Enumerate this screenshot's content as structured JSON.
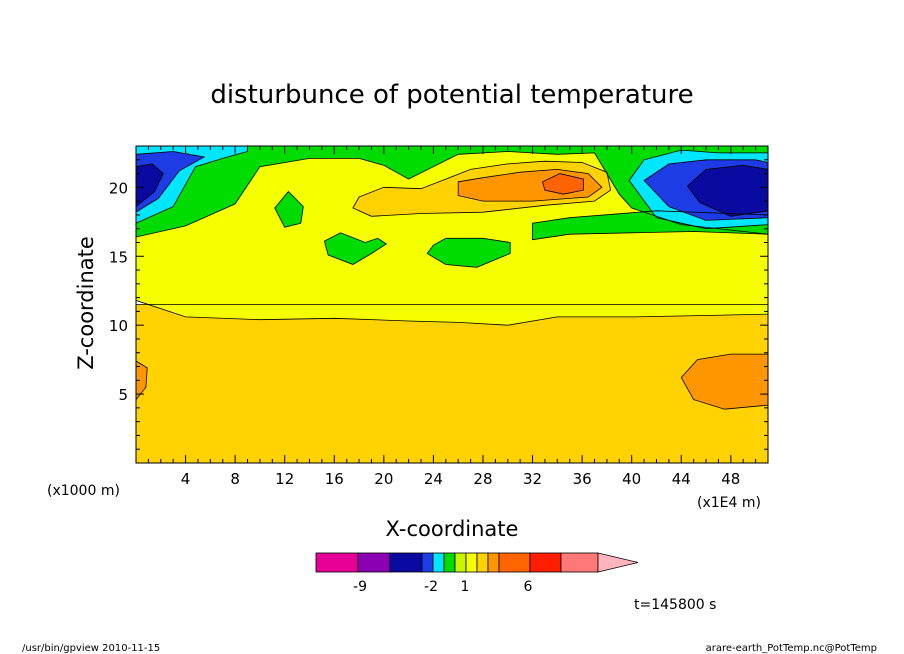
{
  "chart_data": {
    "type": "heatmap",
    "title": "disturbunce of potential temperature",
    "xlabel": "X-coordinate",
    "ylabel": "Z-coordinate",
    "x_unit_left": "(x1000 m)",
    "x_unit_right": "(x1E4 m)",
    "x_ticks": [
      "4",
      "8",
      "12",
      "16",
      "20",
      "24",
      "28",
      "32",
      "36",
      "40",
      "44",
      "48"
    ],
    "y_ticks": [
      "5",
      "10",
      "15",
      "20"
    ],
    "xlim": [
      0,
      51
    ],
    "ylim": [
      0,
      23
    ],
    "time_label": "t=145800 s",
    "colorbar": {
      "colors": [
        "#e60096",
        "#8c00b4",
        "#0a0aa0",
        "#1e3ce6",
        "#00e6ff",
        "#00dc00",
        "#c8f500",
        "#f5ff00",
        "#ffd200",
        "#ff9600",
        "#ff6400",
        "#ff1e00",
        "#ff7878",
        "#ffb4be"
      ],
      "labels": [
        "-9",
        "-2",
        "1",
        "6"
      ]
    },
    "regions": [
      {
        "level": "#ffd200",
        "points": [
          [
            0,
            0
          ],
          [
            51,
            0
          ],
          [
            51,
            11.5
          ],
          [
            0,
            11.5
          ]
        ]
      },
      {
        "level": "#f5ff00",
        "points": [
          [
            0,
            11.8
          ],
          [
            4,
            10.6
          ],
          [
            10,
            10.4
          ],
          [
            16,
            10.5
          ],
          [
            22,
            10.3
          ],
          [
            26,
            10.2
          ],
          [
            30,
            10.0
          ],
          [
            34,
            10.6
          ],
          [
            40,
            10.6
          ],
          [
            46,
            10.7
          ],
          [
            51,
            10.8
          ],
          [
            51,
            23
          ],
          [
            0,
            23
          ]
        ]
      },
      {
        "level": "#00dc00",
        "points": [
          [
            0,
            16.4
          ],
          [
            4,
            17.2
          ],
          [
            8,
            18.8
          ],
          [
            10,
            21.5
          ],
          [
            14,
            22.1
          ],
          [
            18,
            22.1
          ],
          [
            20,
            21.6
          ],
          [
            22,
            20.6
          ],
          [
            24,
            21.5
          ],
          [
            26,
            22.4
          ],
          [
            30,
            22.6
          ],
          [
            34,
            22.4
          ],
          [
            37,
            22.5
          ],
          [
            39,
            19.5
          ],
          [
            40,
            18.5
          ],
          [
            44,
            17.3
          ],
          [
            51,
            16.6
          ],
          [
            51,
            23
          ],
          [
            0,
            23
          ]
        ]
      },
      {
        "level": "#00dc00",
        "points": [
          [
            32,
            16.2
          ],
          [
            35,
            16.6
          ],
          [
            40,
            16.7
          ],
          [
            45,
            16.8
          ],
          [
            51,
            16.6
          ],
          [
            51,
            18
          ],
          [
            42,
            18.3
          ],
          [
            35,
            17.8
          ],
          [
            32,
            17.4
          ]
        ]
      },
      {
        "level": "#00dc00",
        "points": [
          [
            11.2,
            18.5
          ],
          [
            12.3,
            19.7
          ],
          [
            13.5,
            18.6
          ],
          [
            13.3,
            17.4
          ],
          [
            12.0,
            17.1
          ]
        ]
      },
      {
        "level": "#00dc00",
        "points": [
          [
            15.2,
            16.1
          ],
          [
            16.5,
            16.7
          ],
          [
            18.5,
            16.0
          ],
          [
            19.5,
            16.3
          ],
          [
            20.2,
            15.9
          ],
          [
            19.0,
            15.2
          ],
          [
            17.5,
            14.4
          ],
          [
            15.5,
            15.1
          ]
        ]
      },
      {
        "level": "#00dc00",
        "points": [
          [
            24,
            15.8
          ],
          [
            25,
            16.3
          ],
          [
            28,
            16.3
          ],
          [
            30.2,
            16.0
          ],
          [
            30.2,
            15.2
          ],
          [
            27.5,
            14.2
          ],
          [
            25.0,
            14.4
          ],
          [
            23.5,
            15.2
          ]
        ]
      },
      {
        "level": "#00e6ff",
        "points": [
          [
            0,
            17.4
          ],
          [
            3,
            18.6
          ],
          [
            4.8,
            21.5
          ],
          [
            7,
            22.1
          ],
          [
            9,
            22.6
          ],
          [
            9,
            23
          ],
          [
            0,
            23
          ]
        ]
      },
      {
        "level": "#00e6ff",
        "points": [
          [
            39.8,
            20.5
          ],
          [
            41,
            22.0
          ],
          [
            44,
            22.7
          ],
          [
            47,
            22.5
          ],
          [
            51,
            22.5
          ],
          [
            51,
            17.3
          ],
          [
            46,
            17.0
          ],
          [
            42,
            17.8
          ]
        ]
      },
      {
        "level": "#1e3ce6",
        "points": [
          [
            0,
            18.2
          ],
          [
            1.8,
            19.2
          ],
          [
            3.5,
            21.2
          ],
          [
            5.5,
            22.2
          ],
          [
            3,
            22.6
          ],
          [
            0,
            22.4
          ]
        ]
      },
      {
        "level": "#1e3ce6",
        "points": [
          [
            41,
            20.5
          ],
          [
            43,
            21.7
          ],
          [
            46,
            22.0
          ],
          [
            50,
            22.0
          ],
          [
            51,
            21.8
          ],
          [
            51,
            17.8
          ],
          [
            46,
            17.6
          ],
          [
            43,
            18.6
          ]
        ]
      },
      {
        "level": "#0a0aa0",
        "points": [
          [
            0,
            18.6
          ],
          [
            1.5,
            19.7
          ],
          [
            2.2,
            21.0
          ],
          [
            1.3,
            21.7
          ],
          [
            0,
            21.5
          ]
        ]
      },
      {
        "level": "#0a0aa0",
        "points": [
          [
            44.5,
            20.1
          ],
          [
            46,
            21.3
          ],
          [
            49,
            21.6
          ],
          [
            51,
            21.3
          ],
          [
            51,
            18.3
          ],
          [
            48,
            17.9
          ],
          [
            45.5,
            18.9
          ]
        ]
      },
      {
        "level": "#ffd200",
        "points": [
          [
            18,
            19.3
          ],
          [
            20,
            20.0
          ],
          [
            23,
            19.9
          ],
          [
            25,
            20.6
          ],
          [
            27,
            21.3
          ],
          [
            30,
            21.7
          ],
          [
            33,
            21.9
          ],
          [
            36,
            21.8
          ],
          [
            38,
            21.1
          ],
          [
            38.3,
            19.8
          ],
          [
            37,
            19.0
          ],
          [
            33,
            18.7
          ],
          [
            28,
            18.2
          ],
          [
            23,
            18.1
          ],
          [
            19,
            17.9
          ],
          [
            17.5,
            18.5
          ]
        ]
      },
      {
        "level": "#ff9600",
        "points": [
          [
            26,
            20.4
          ],
          [
            28,
            20.7
          ],
          [
            31,
            21.1
          ],
          [
            34,
            21.3
          ],
          [
            36.5,
            21.0
          ],
          [
            37.6,
            20.0
          ],
          [
            36.5,
            19.3
          ],
          [
            32,
            19.0
          ],
          [
            28,
            19.0
          ],
          [
            26,
            19.4
          ]
        ]
      },
      {
        "level": "#ff6400",
        "points": [
          [
            32.8,
            20.4
          ],
          [
            34.2,
            21.0
          ],
          [
            36.1,
            20.6
          ],
          [
            36.1,
            19.8
          ],
          [
            34.5,
            19.5
          ],
          [
            33.0,
            19.8
          ]
        ]
      },
      {
        "level": "#ff9600",
        "points": [
          [
            0,
            4.6
          ],
          [
            0.8,
            5.5
          ],
          [
            0.9,
            6.9
          ],
          [
            0,
            7.4
          ]
        ]
      },
      {
        "level": "#ff9600",
        "points": [
          [
            44,
            6.2
          ],
          [
            45.3,
            7.5
          ],
          [
            48,
            7.9
          ],
          [
            51,
            7.9
          ],
          [
            51,
            4.2
          ],
          [
            47.5,
            3.9
          ],
          [
            45,
            4.6
          ]
        ]
      }
    ]
  },
  "footer": {
    "left": "/usr/bin/gpview  2010-11-15",
    "right": "arare-earth_PotTemp.nc@PotTemp"
  }
}
